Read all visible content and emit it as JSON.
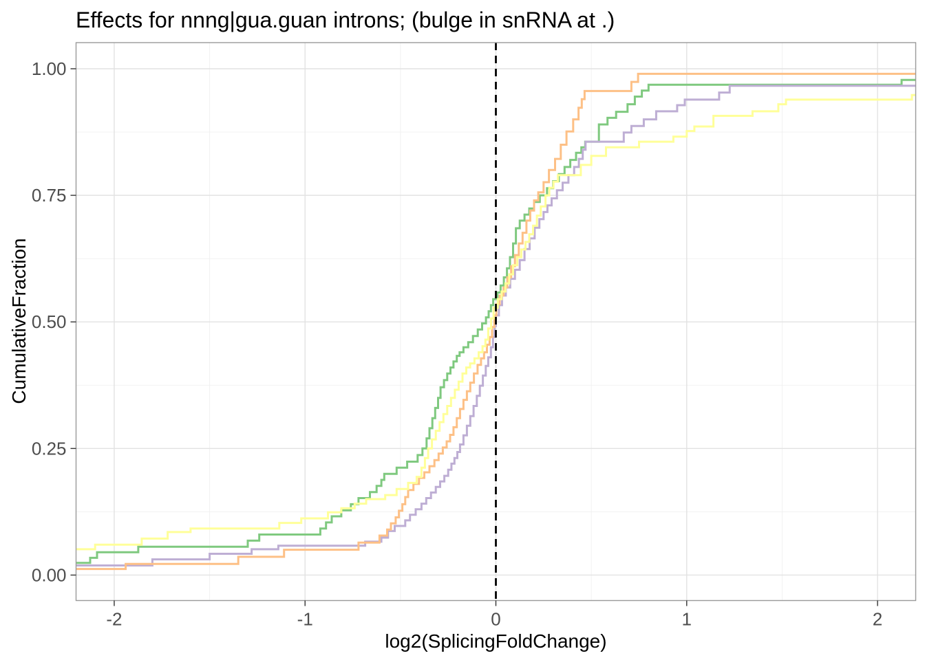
{
  "chart_data": {
    "type": "line",
    "variant": "ecdf_step",
    "title": "Effects for nnng|gua.guan introns; (bulge in snRNA at .)",
    "xlabel": "log2(SplicingFoldChange)",
    "ylabel": "CumulativeFraction",
    "xlim": [
      -2.2,
      2.2
    ],
    "ylim": [
      -0.0503,
      1.0516
    ],
    "x_ticks": {
      "values": [
        -2,
        -1,
        0,
        1,
        2
      ],
      "labels": [
        "-2",
        "-1",
        "0",
        "1",
        "2"
      ],
      "minor": [
        -1.5,
        -0.5,
        0.5,
        1.5
      ]
    },
    "y_ticks": {
      "values": [
        0,
        0.25,
        0.5,
        0.75,
        1
      ],
      "labels": [
        "0.00",
        "0.25",
        "0.50",
        "0.75",
        "1.00"
      ],
      "minor": [
        0.125,
        0.375,
        0.625,
        0.875
      ]
    },
    "grid": {
      "major": true,
      "minor": true
    },
    "legend_position": "none",
    "reference_line": {
      "axis": "x",
      "value": 0,
      "style": "dashed",
      "color": "#000000"
    },
    "series": [
      {
        "name": "green",
        "color": "#7FC97F",
        "start": 0.024,
        "steps": [
          [
            -2.126,
            0.034
          ],
          [
            -2.09,
            0.045
          ],
          [
            -1.874,
            0.056
          ],
          [
            -1.3,
            0.068
          ],
          [
            -1.24,
            0.08
          ],
          [
            -0.92,
            0.092
          ],
          [
            -0.89,
            0.104
          ],
          [
            -0.86,
            0.116
          ],
          [
            -0.81,
            0.128
          ],
          [
            -0.76,
            0.14
          ],
          [
            -0.72,
            0.152
          ],
          [
            -0.66,
            0.164
          ],
          [
            -0.625,
            0.176
          ],
          [
            -0.6,
            0.188
          ],
          [
            -0.585,
            0.2
          ],
          [
            -0.52,
            0.212
          ],
          [
            -0.465,
            0.224
          ],
          [
            -0.41,
            0.237
          ],
          [
            -0.385,
            0.25
          ],
          [
            -0.363,
            0.27
          ],
          [
            -0.348,
            0.29
          ],
          [
            -0.333,
            0.31
          ],
          [
            -0.318,
            0.33
          ],
          [
            -0.303,
            0.35
          ],
          [
            -0.29,
            0.371
          ],
          [
            -0.272,
            0.385
          ],
          [
            -0.255,
            0.398
          ],
          [
            -0.238,
            0.41
          ],
          [
            -0.222,
            0.422
          ],
          [
            -0.205,
            0.433
          ],
          [
            -0.19,
            0.44
          ],
          [
            -0.17,
            0.45
          ],
          [
            -0.145,
            0.46
          ],
          [
            -0.12,
            0.472
          ],
          [
            -0.095,
            0.485
          ],
          [
            -0.072,
            0.497
          ],
          [
            -0.052,
            0.509
          ],
          [
            -0.038,
            0.521
          ],
          [
            -0.026,
            0.533
          ],
          [
            -0.014,
            0.545
          ],
          [
            0.008,
            0.558
          ],
          [
            0.025,
            0.572
          ],
          [
            0.042,
            0.588
          ],
          [
            0.058,
            0.606
          ],
          [
            0.074,
            0.628
          ],
          [
            0.09,
            0.655
          ],
          [
            0.105,
            0.685
          ],
          [
            0.125,
            0.7
          ],
          [
            0.15,
            0.712
          ],
          [
            0.175,
            0.724
          ],
          [
            0.2,
            0.737
          ],
          [
            0.23,
            0.75
          ],
          [
            0.268,
            0.764
          ],
          [
            0.3,
            0.778
          ],
          [
            0.33,
            0.792
          ],
          [
            0.36,
            0.806
          ],
          [
            0.39,
            0.82
          ],
          [
            0.42,
            0.834
          ],
          [
            0.448,
            0.845
          ],
          [
            0.468,
            0.856
          ],
          [
            0.54,
            0.89
          ],
          [
            0.585,
            0.903
          ],
          [
            0.63,
            0.915
          ],
          [
            0.69,
            0.93
          ],
          [
            0.728,
            0.945
          ],
          [
            0.765,
            0.957
          ],
          [
            0.8,
            0.9685
          ],
          [
            2.126,
            0.978
          ]
        ]
      },
      {
        "name": "purple",
        "color": "#BEAED4",
        "start": 0.019,
        "steps": [
          [
            -1.8,
            0.031
          ],
          [
            -1.5,
            0.042
          ],
          [
            -1.28,
            0.051
          ],
          [
            -1.14,
            0.058
          ],
          [
            -0.685,
            0.066
          ],
          [
            -0.6,
            0.074
          ],
          [
            -0.565,
            0.087
          ],
          [
            -0.53,
            0.097
          ],
          [
            -0.475,
            0.108
          ],
          [
            -0.45,
            0.119
          ],
          [
            -0.42,
            0.13
          ],
          [
            -0.39,
            0.141
          ],
          [
            -0.365,
            0.152
          ],
          [
            -0.34,
            0.163
          ],
          [
            -0.315,
            0.174
          ],
          [
            -0.292,
            0.185
          ],
          [
            -0.27,
            0.196
          ],
          [
            -0.25,
            0.208
          ],
          [
            -0.233,
            0.22
          ],
          [
            -0.217,
            0.231
          ],
          [
            -0.202,
            0.243
          ],
          [
            -0.188,
            0.258
          ],
          [
            -0.17,
            0.276
          ],
          [
            -0.152,
            0.295
          ],
          [
            -0.134,
            0.314
          ],
          [
            -0.117,
            0.334
          ],
          [
            -0.1,
            0.354
          ],
          [
            -0.084,
            0.374
          ],
          [
            -0.068,
            0.394
          ],
          [
            -0.053,
            0.413
          ],
          [
            -0.04,
            0.43
          ],
          [
            -0.026,
            0.45
          ],
          [
            -0.015,
            0.47
          ],
          [
            -0.007,
            0.492
          ],
          [
            0.0,
            0.513
          ],
          [
            0.016,
            0.533
          ],
          [
            0.032,
            0.552
          ],
          [
            0.052,
            0.568
          ],
          [
            0.075,
            0.585
          ],
          [
            0.1,
            0.603
          ],
          [
            0.125,
            0.622
          ],
          [
            0.15,
            0.644
          ],
          [
            0.177,
            0.665
          ],
          [
            0.203,
            0.686
          ],
          [
            0.228,
            0.703
          ],
          [
            0.25,
            0.717
          ],
          [
            0.27,
            0.73
          ],
          [
            0.292,
            0.744
          ],
          [
            0.32,
            0.76
          ],
          [
            0.35,
            0.775
          ],
          [
            0.38,
            0.79
          ],
          [
            0.41,
            0.806
          ],
          [
            0.435,
            0.822
          ],
          [
            0.455,
            0.84
          ],
          [
            0.47,
            0.856
          ],
          [
            0.67,
            0.874
          ],
          [
            0.71,
            0.887
          ],
          [
            0.775,
            0.9
          ],
          [
            0.84,
            0.916
          ],
          [
            0.95,
            0.928
          ],
          [
            0.99,
            0.939
          ],
          [
            1.17,
            0.953
          ],
          [
            1.225,
            0.9665
          ]
        ]
      },
      {
        "name": "orange",
        "color": "#FDC086",
        "start": 0.012,
        "steps": [
          [
            -1.94,
            0.022
          ],
          [
            -1.35,
            0.036
          ],
          [
            -1.11,
            0.05
          ],
          [
            -0.72,
            0.064
          ],
          [
            -0.61,
            0.078
          ],
          [
            -0.57,
            0.09
          ],
          [
            -0.55,
            0.102
          ],
          [
            -0.525,
            0.114
          ],
          [
            -0.508,
            0.127
          ],
          [
            -0.49,
            0.14
          ],
          [
            -0.475,
            0.154
          ],
          [
            -0.46,
            0.168
          ],
          [
            -0.432,
            0.18
          ],
          [
            -0.403,
            0.192
          ],
          [
            -0.375,
            0.203
          ],
          [
            -0.348,
            0.215
          ],
          [
            -0.322,
            0.227
          ],
          [
            -0.3,
            0.24
          ],
          [
            -0.278,
            0.252
          ],
          [
            -0.258,
            0.264
          ],
          [
            -0.24,
            0.277
          ],
          [
            -0.222,
            0.292
          ],
          [
            -0.205,
            0.31
          ],
          [
            -0.188,
            0.328
          ],
          [
            -0.17,
            0.346
          ],
          [
            -0.152,
            0.363
          ],
          [
            -0.134,
            0.38
          ],
          [
            -0.115,
            0.398
          ],
          [
            -0.096,
            0.415
          ],
          [
            -0.078,
            0.428
          ],
          [
            -0.062,
            0.44
          ],
          [
            -0.047,
            0.455
          ],
          [
            -0.033,
            0.47
          ],
          [
            -0.02,
            0.49
          ],
          [
            -0.008,
            0.513
          ],
          [
            0.002,
            0.535
          ],
          [
            0.02,
            0.552
          ],
          [
            0.04,
            0.568
          ],
          [
            0.06,
            0.588
          ],
          [
            0.08,
            0.61
          ],
          [
            0.1,
            0.632
          ],
          [
            0.12,
            0.655
          ],
          [
            0.14,
            0.676
          ],
          [
            0.16,
            0.7
          ],
          [
            0.18,
            0.72
          ],
          [
            0.2,
            0.74
          ],
          [
            0.222,
            0.756
          ],
          [
            0.25,
            0.776
          ],
          [
            0.278,
            0.8
          ],
          [
            0.31,
            0.822
          ],
          [
            0.34,
            0.85
          ],
          [
            0.37,
            0.876
          ],
          [
            0.405,
            0.9
          ],
          [
            0.433,
            0.923
          ],
          [
            0.45,
            0.94
          ],
          [
            0.465,
            0.956
          ],
          [
            0.71,
            0.974
          ],
          [
            0.745,
            0.99
          ]
        ]
      },
      {
        "name": "yellow",
        "color": "#FFFF99",
        "start": 0.051,
        "steps": [
          [
            -2.1,
            0.06
          ],
          [
            -1.856,
            0.072
          ],
          [
            -1.72,
            0.085
          ],
          [
            -1.6,
            0.092
          ],
          [
            -1.135,
            0.103
          ],
          [
            -1.02,
            0.112
          ],
          [
            -0.88,
            0.124
          ],
          [
            -0.81,
            0.132
          ],
          [
            -0.74,
            0.141
          ],
          [
            -0.68,
            0.15
          ],
          [
            -0.58,
            0.158
          ],
          [
            -0.52,
            0.17
          ],
          [
            -0.46,
            0.182
          ],
          [
            -0.415,
            0.194
          ],
          [
            -0.39,
            0.212
          ],
          [
            -0.372,
            0.231
          ],
          [
            -0.355,
            0.25
          ],
          [
            -0.335,
            0.268
          ],
          [
            -0.315,
            0.285
          ],
          [
            -0.295,
            0.302
          ],
          [
            -0.275,
            0.318
          ],
          [
            -0.255,
            0.334
          ],
          [
            -0.235,
            0.35
          ],
          [
            -0.215,
            0.366
          ],
          [
            -0.195,
            0.382
          ],
          [
            -0.175,
            0.398
          ],
          [
            -0.155,
            0.41
          ],
          [
            -0.135,
            0.418
          ],
          [
            -0.112,
            0.428
          ],
          [
            -0.09,
            0.44
          ],
          [
            -0.07,
            0.452
          ],
          [
            -0.055,
            0.465
          ],
          [
            -0.04,
            0.487
          ],
          [
            -0.025,
            0.507
          ],
          [
            -0.012,
            0.528
          ],
          [
            0.01,
            0.545
          ],
          [
            0.03,
            0.56
          ],
          [
            0.05,
            0.576
          ],
          [
            0.07,
            0.594
          ],
          [
            0.09,
            0.612
          ],
          [
            0.112,
            0.628
          ],
          [
            0.133,
            0.643
          ],
          [
            0.155,
            0.658
          ],
          [
            0.175,
            0.673
          ],
          [
            0.195,
            0.69
          ],
          [
            0.215,
            0.71
          ],
          [
            0.235,
            0.728
          ],
          [
            0.26,
            0.75
          ],
          [
            0.28,
            0.765
          ],
          [
            0.302,
            0.777
          ],
          [
            0.325,
            0.79
          ],
          [
            0.445,
            0.81
          ],
          [
            0.5,
            0.828
          ],
          [
            0.577,
            0.845
          ],
          [
            0.75,
            0.856
          ],
          [
            0.93,
            0.866
          ],
          [
            1.0,
            0.877
          ],
          [
            1.04,
            0.886
          ],
          [
            1.14,
            0.907
          ],
          [
            1.345,
            0.916
          ],
          [
            1.48,
            0.93
          ],
          [
            1.52,
            0.939
          ],
          [
            2.18,
            0.948
          ]
        ]
      }
    ]
  },
  "theme": {
    "background": "#ffffff",
    "panel_background": "#ffffff",
    "grid_major_color": "#e2e2e2",
    "grid_minor_color": "#f0f0f0",
    "panel_border_color": "#9a9a9a",
    "tick_mark_color": "#333333",
    "tick_label_color": "#4d4d4d",
    "title_color": "#000000",
    "axis_title_color": "#000000"
  }
}
